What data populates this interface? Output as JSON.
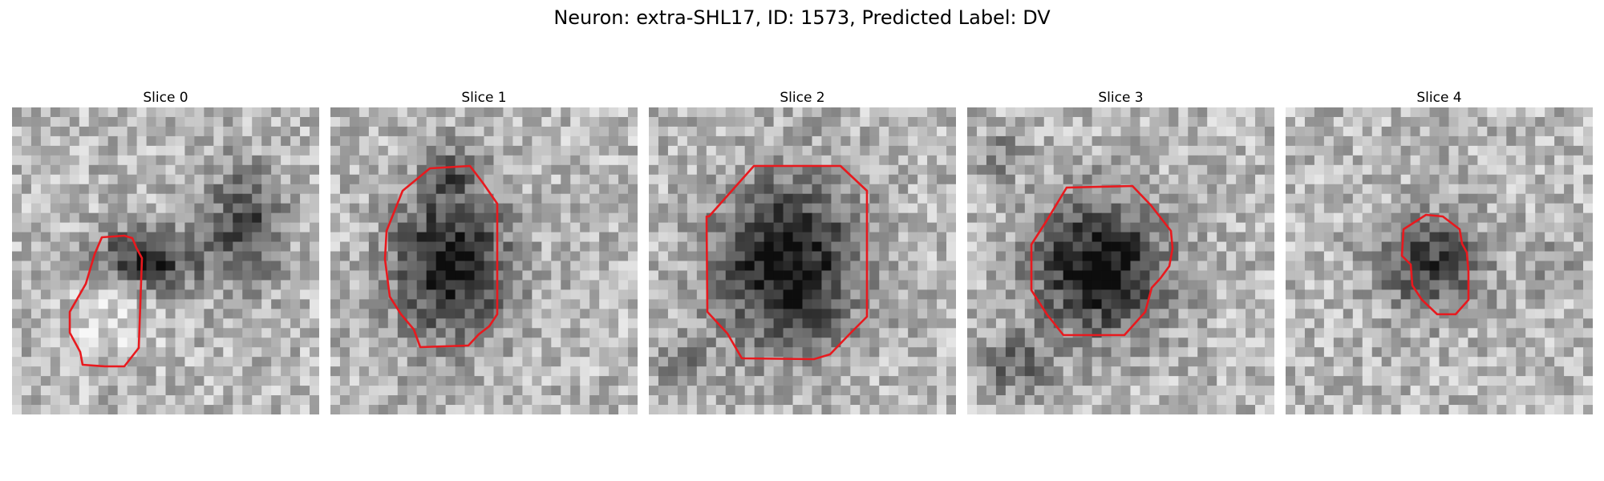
{
  "figure": {
    "title": "Neuron: extra-SHL17, ID: 1573, Predicted Label: DV"
  },
  "contour_color": "#e8191e",
  "panels": [
    {
      "title": "Slice 0"
    },
    {
      "title": "Slice 1"
    },
    {
      "title": "Slice 2"
    },
    {
      "title": "Slice 3"
    },
    {
      "title": "Slice 4"
    }
  ]
}
